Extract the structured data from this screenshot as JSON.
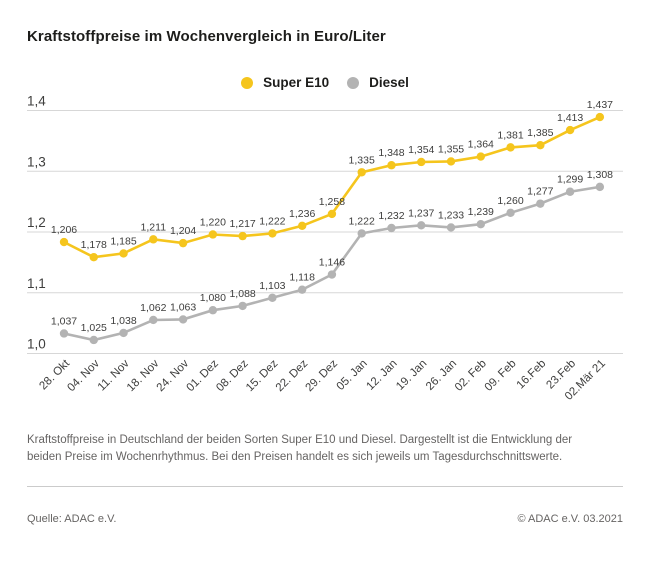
{
  "title": "Kraftstoffpreise im Wochenvergleich in Euro/Liter",
  "chart_data": {
    "type": "line",
    "title": "Kraftstoffpreise im Wochenvergleich in Euro/Liter",
    "x": [
      "28. Okt",
      "04. Nov",
      "11. Nov",
      "18. Nov",
      "24. Nov",
      "01. Dez",
      "08. Dez",
      "15. Dez",
      "22. Dez",
      "29. Dez",
      "05. Jan",
      "12. Jan",
      "19. Jan",
      "26. Jan",
      "02. Feb",
      "09. Feb",
      "16.Feb",
      "23.Feb",
      "02.Mär 21"
    ],
    "series": [
      {
        "id": "super-e10",
        "name": "Super E10",
        "color": "#f5c51d",
        "values": [
          1.206,
          1.178,
          1.185,
          1.211,
          1.204,
          1.22,
          1.217,
          1.222,
          1.236,
          1.258,
          1.335,
          1.348,
          1.354,
          1.355,
          1.364,
          1.381,
          1.385,
          1.413,
          1.437
        ]
      },
      {
        "id": "diesel",
        "name": "Diesel",
        "color": "#b3b3b3",
        "values": [
          1.037,
          1.025,
          1.038,
          1.062,
          1.063,
          1.08,
          1.088,
          1.103,
          1.118,
          1.146,
          1.222,
          1.232,
          1.237,
          1.233,
          1.239,
          1.26,
          1.277,
          1.299,
          1.308
        ]
      }
    ],
    "yticks": [
      1.0,
      1.1,
      1.2,
      1.3,
      1.4
    ],
    "ytick_labels": [
      "1,0",
      "1,1",
      "1,2",
      "1,3",
      "1,4"
    ],
    "ylim": [
      1.0,
      1.45
    ],
    "xlabel": "",
    "ylabel": "Euro/Liter",
    "grid": true,
    "legend_position": "top-center",
    "value_label_format": "german-decimal-comma"
  },
  "description": "Kraftstoffpreise in Deutschland der beiden Sorten Super E10 und Diesel. Dargestellt ist die Entwicklung der beiden Preise im Wochenrhythmus. Bei den Preisen handelt es sich jeweils um Tagesdurchschnittswerte.",
  "source": "Quelle: ADAC e.V.",
  "copyright": "© ADAC e.V. 03.2021"
}
